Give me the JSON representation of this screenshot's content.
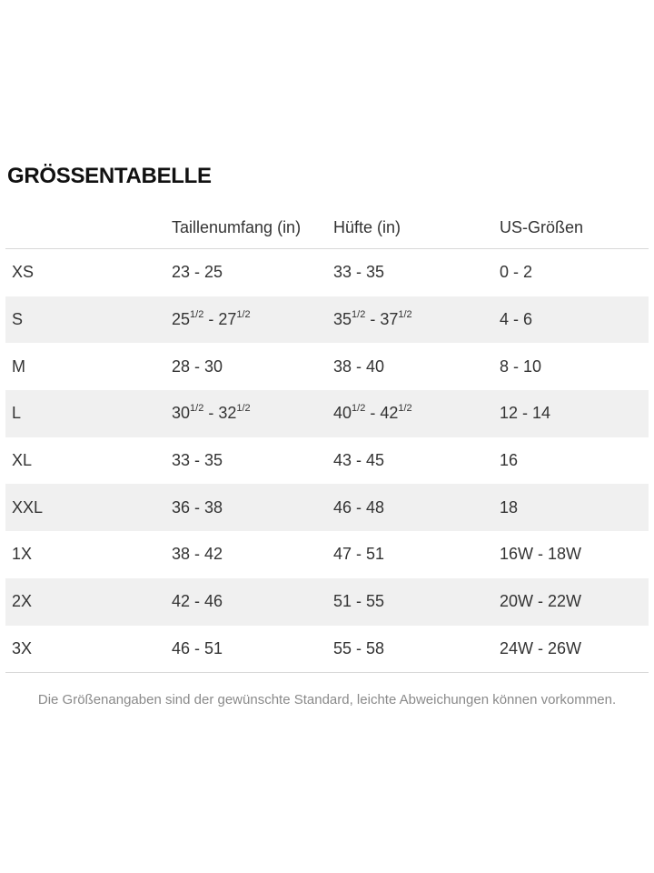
{
  "page": {
    "title": "GRÖSSENTABELLE",
    "footnote": "Die Größenangaben sind der gewünschte Standard, leichte Abweichungen können vorkommen."
  },
  "table": {
    "columns": [
      "",
      "Taillenumfang (in)",
      "Hüfte (in)",
      "US-Größen"
    ],
    "rows": [
      {
        "size": "XS",
        "waist": "23 - 25",
        "hips": "33 - 35",
        "us": "0 - 2"
      },
      {
        "size": "S",
        "waist": "25{1/2} - 27{1/2}",
        "hips": "35{1/2} - 37{1/2}",
        "us": "4 - 6"
      },
      {
        "size": "M",
        "waist": "28 - 30",
        "hips": "38 - 40",
        "us": "8 - 10"
      },
      {
        "size": "L",
        "waist": "30{1/2} - 32{1/2}",
        "hips": "40{1/2} - 42{1/2}",
        "us": "12 - 14"
      },
      {
        "size": "XL",
        "waist": "33 - 35",
        "hips": "43 - 45",
        "us": "16"
      },
      {
        "size": "XXL",
        "waist": "36 - 38",
        "hips": "46 - 48",
        "us": "18"
      },
      {
        "size": "1X",
        "waist": "38 - 42",
        "hips": "47 - 51",
        "us": "16W - 18W"
      },
      {
        "size": "2X",
        "waist": "42 - 46",
        "hips": "51 - 55",
        "us": "20W - 22W"
      },
      {
        "size": "3X",
        "waist": "46 - 51",
        "hips": "55 - 58",
        "us": "24W - 26W"
      }
    ]
  },
  "colors": {
    "row-alt-bg": "#f0f0f0",
    "border": "#d8d8d8",
    "text": "#333333",
    "title-color": "#111111",
    "muted": "#8a8a8a"
  }
}
